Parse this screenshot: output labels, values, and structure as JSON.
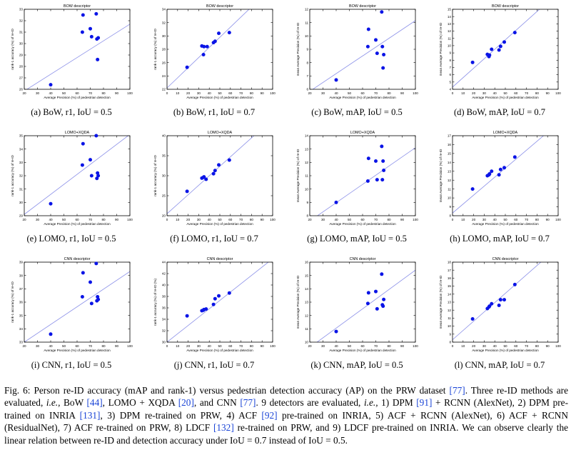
{
  "chart_data": [
    {
      "type": "scatter",
      "id": "a",
      "title": "BOW descriptor",
      "caption": "(a) BoW, r1, IoU = 0.5",
      "xlabel": "Average Precision (%) of pedestrian detection",
      "ylabel": "rank-1 accuracy (%) of re-ID",
      "xlim": [
        20,
        100
      ],
      "ylim": [
        26,
        33
      ],
      "xticks": [
        20,
        30,
        40,
        50,
        60,
        70,
        80,
        90,
        100
      ],
      "yticks": [
        26,
        27,
        28,
        29,
        30,
        31,
        32,
        33
      ],
      "points": [
        {
          "x": 40,
          "y": 26.4
        },
        {
          "x": 64,
          "y": 31
        },
        {
          "x": 64.5,
          "y": 32.5
        },
        {
          "x": 70,
          "y": 31.3
        },
        {
          "x": 71,
          "y": 30.6
        },
        {
          "x": 74.5,
          "y": 32.6
        },
        {
          "x": 75,
          "y": 30.4
        },
        {
          "x": 76,
          "y": 30.5
        },
        {
          "x": 75.5,
          "y": 28.6
        }
      ],
      "fit": [
        {
          "x": 20,
          "y": 25.85
        },
        {
          "x": 100,
          "y": 31.7
        }
      ]
    },
    {
      "type": "scatter",
      "id": "b",
      "title": "BOW descriptor",
      "caption": "(b) BoW, r1, IoU = 0.7",
      "xlabel": "Average Precision (%) of pedestrian detection",
      "ylabel": "rank-1 accuracy (%) of re-ID",
      "xlim": [
        0,
        100
      ],
      "ylim": [
        22,
        34
      ],
      "xticks": [
        0,
        10,
        20,
        30,
        40,
        50,
        60,
        70,
        80,
        90,
        100
      ],
      "yticks": [
        22,
        24,
        26,
        28,
        30,
        32,
        34
      ],
      "points": [
        {
          "x": 19,
          "y": 25.3
        },
        {
          "x": 33,
          "y": 28.5
        },
        {
          "x": 34.5,
          "y": 27.2
        },
        {
          "x": 35,
          "y": 28.4
        },
        {
          "x": 38,
          "y": 28.4
        },
        {
          "x": 44,
          "y": 29
        },
        {
          "x": 45.5,
          "y": 29.2
        },
        {
          "x": 49,
          "y": 30.4
        },
        {
          "x": 59,
          "y": 30.5
        }
      ],
      "fit": [
        {
          "x": 0,
          "y": 22.2
        },
        {
          "x": 100,
          "y": 37.4
        }
      ]
    },
    {
      "type": "scatter",
      "id": "c",
      "title": "BOW descriptor",
      "caption": "(c) BoW, mAP, IoU = 0.5",
      "xlabel": "Average Precision (%) of pedestrian detection",
      "ylabel": "mean Average Precision (%) of re-ID",
      "xlim": [
        20,
        100
      ],
      "ylim": [
        6,
        12
      ],
      "xticks": [
        20,
        30,
        40,
        50,
        60,
        70,
        80,
        90,
        100
      ],
      "yticks": [
        6,
        7,
        8,
        9,
        10,
        11,
        12
      ],
      "points": [
        {
          "x": 40,
          "y": 6.7
        },
        {
          "x": 64,
          "y": 9.2
        },
        {
          "x": 64.5,
          "y": 10.5
        },
        {
          "x": 70,
          "y": 9.7
        },
        {
          "x": 71,
          "y": 8.7
        },
        {
          "x": 74.5,
          "y": 11.8
        },
        {
          "x": 75,
          "y": 9.2
        },
        {
          "x": 76,
          "y": 8.6
        },
        {
          "x": 75.5,
          "y": 7.6
        }
      ],
      "fit": [
        {
          "x": 20,
          "y": 5.85
        },
        {
          "x": 100,
          "y": 11.15
        }
      ]
    },
    {
      "type": "scatter",
      "id": "d",
      "title": "BOW descriptor",
      "caption": "(d) BoW, mAP, IoU = 0.7",
      "xlabel": "Average Precision (%) of pedestrian detection",
      "ylabel": "mean Average Precision (%) of re-ID",
      "xlim": [
        0,
        100
      ],
      "ylim": [
        4,
        15
      ],
      "xticks": [
        0,
        10,
        20,
        30,
        40,
        50,
        60,
        70,
        80,
        90,
        100
      ],
      "yticks": [
        4,
        5,
        6,
        7,
        8,
        9,
        10,
        11,
        12,
        13,
        14,
        15
      ],
      "points": [
        {
          "x": 19,
          "y": 7.7
        },
        {
          "x": 33,
          "y": 8.8
        },
        {
          "x": 34.5,
          "y": 8.5
        },
        {
          "x": 35,
          "y": 8.7
        },
        {
          "x": 37,
          "y": 9.5
        },
        {
          "x": 44,
          "y": 9.4
        },
        {
          "x": 45.5,
          "y": 9.9
        },
        {
          "x": 49,
          "y": 10.5
        },
        {
          "x": 59,
          "y": 11.8
        }
      ],
      "fit": [
        {
          "x": 0,
          "y": 4.3
        },
        {
          "x": 100,
          "y": 17.3
        }
      ]
    },
    {
      "type": "scatter",
      "id": "e",
      "title": "LOMO+XQDA",
      "caption": "(e) LOMO, r1, IoU = 0.5",
      "xlabel": "Average Precision (%) of pedestrian detection",
      "ylabel": "rank-1 accuracy (%) of re-ID",
      "xlim": [
        20,
        100
      ],
      "ylim": [
        29,
        35
      ],
      "xticks": [
        20,
        30,
        40,
        50,
        60,
        70,
        80,
        90,
        100
      ],
      "yticks": [
        29,
        30,
        31,
        32,
        33,
        34,
        35
      ],
      "points": [
        {
          "x": 40,
          "y": 29.9
        },
        {
          "x": 64,
          "y": 32.8
        },
        {
          "x": 64.5,
          "y": 34.4
        },
        {
          "x": 70,
          "y": 33.2
        },
        {
          "x": 71,
          "y": 32
        },
        {
          "x": 74.5,
          "y": 35
        },
        {
          "x": 75,
          "y": 31.8
        },
        {
          "x": 76,
          "y": 32
        },
        {
          "x": 75.5,
          "y": 32.2
        }
      ],
      "fit": [
        {
          "x": 20,
          "y": 29.1
        },
        {
          "x": 100,
          "y": 35.1
        }
      ]
    },
    {
      "type": "scatter",
      "id": "f",
      "title": "LOMO+XQDA",
      "caption": "(f) LOMO, r1, IoU = 0.7",
      "xlabel": "Average Precision (%) of pedestrian detection",
      "ylabel": "rank-1 accuracy (%) of re-ID",
      "xlim": [
        0,
        100
      ],
      "ylim": [
        20,
        40
      ],
      "xticks": [
        0,
        10,
        20,
        30,
        40,
        50,
        60,
        70,
        80,
        90,
        100
      ],
      "yticks": [
        20,
        25,
        30,
        35,
        40
      ],
      "points": [
        {
          "x": 19,
          "y": 26.1
        },
        {
          "x": 33,
          "y": 29.4
        },
        {
          "x": 34.5,
          "y": 29.6
        },
        {
          "x": 35,
          "y": 29.7
        },
        {
          "x": 37,
          "y": 29.1
        },
        {
          "x": 44,
          "y": 30.5
        },
        {
          "x": 45.5,
          "y": 31.3
        },
        {
          "x": 49,
          "y": 32.7
        },
        {
          "x": 59,
          "y": 33.9
        }
      ],
      "fit": [
        {
          "x": 0,
          "y": 20.5
        },
        {
          "x": 100,
          "y": 44.2
        }
      ]
    },
    {
      "type": "scatter",
      "id": "g",
      "title": "LOMO+XQDA",
      "caption": "(g) LOMO, mAP, IoU = 0.5",
      "xlabel": "Average Precision (%) of pedestrian detection",
      "ylabel": "mean Average Precision (%) of re-ID",
      "xlim": [
        20,
        100
      ],
      "ylim": [
        8,
        14
      ],
      "xticks": [
        20,
        30,
        40,
        50,
        60,
        70,
        80,
        90,
        100
      ],
      "yticks": [
        8,
        9,
        10,
        11,
        12,
        13,
        14
      ],
      "points": [
        {
          "x": 40,
          "y": 9
        },
        {
          "x": 64,
          "y": 10.6
        },
        {
          "x": 64.5,
          "y": 12.3
        },
        {
          "x": 70,
          "y": 12.1
        },
        {
          "x": 71,
          "y": 10.7
        },
        {
          "x": 74.5,
          "y": 13.2
        },
        {
          "x": 75,
          "y": 10.7
        },
        {
          "x": 76,
          "y": 11.4
        },
        {
          "x": 75.5,
          "y": 12.1
        }
      ],
      "fit": [
        {
          "x": 20,
          "y": 7.6
        },
        {
          "x": 100,
          "y": 13.1
        }
      ]
    },
    {
      "type": "scatter",
      "id": "h",
      "title": "LOMO+XQDA",
      "caption": "(h) LOMO, mAP, IoU = 0.7",
      "xlabel": "Average Precision (%) of pedestrian detection",
      "ylabel": "mean Average Precision (%) of re-ID",
      "xlim": [
        0,
        100
      ],
      "ylim": [
        8,
        17
      ],
      "xticks": [
        0,
        10,
        20,
        30,
        40,
        50,
        60,
        70,
        80,
        90,
        100
      ],
      "yticks": [
        8,
        9,
        10,
        11,
        12,
        13,
        14,
        15,
        16,
        17
      ],
      "points": [
        {
          "x": 19,
          "y": 11
        },
        {
          "x": 33,
          "y": 12.5
        },
        {
          "x": 34.5,
          "y": 12.6
        },
        {
          "x": 35,
          "y": 12.7
        },
        {
          "x": 37,
          "y": 13
        },
        {
          "x": 44,
          "y": 12.6
        },
        {
          "x": 45.5,
          "y": 13.2
        },
        {
          "x": 49,
          "y": 13.4
        },
        {
          "x": 59,
          "y": 14.6
        }
      ],
      "fit": [
        {
          "x": 0,
          "y": 8.3
        },
        {
          "x": 100,
          "y": 18.4
        }
      ]
    },
    {
      "type": "scatter",
      "id": "i",
      "title": "CNN descriptor",
      "caption": "(i) CNN, r1, IoU = 0.5",
      "xlabel": "Average Precision (%) of pedestrian detection",
      "ylabel": "rank-1 accuracy (%) of re-ID",
      "xlim": [
        20,
        100
      ],
      "ylim": [
        33,
        39
      ],
      "xticks": [
        20,
        30,
        40,
        50,
        60,
        70,
        80,
        90,
        100
      ],
      "yticks": [
        33,
        34,
        35,
        36,
        37,
        38,
        39
      ],
      "points": [
        {
          "x": 40,
          "y": 33.6
        },
        {
          "x": 64,
          "y": 36.4
        },
        {
          "x": 64.5,
          "y": 38.2
        },
        {
          "x": 70,
          "y": 37.5
        },
        {
          "x": 71,
          "y": 35.9
        },
        {
          "x": 74.5,
          "y": 38.9
        },
        {
          "x": 75,
          "y": 36.1
        },
        {
          "x": 76,
          "y": 36.2
        },
        {
          "x": 75.5,
          "y": 36.4
        }
      ],
      "fit": [
        {
          "x": 20,
          "y": 33
        },
        {
          "x": 100,
          "y": 38.3
        }
      ]
    },
    {
      "type": "scatter",
      "id": "j",
      "title": "CNN descriptor",
      "caption": "(j) CNN, r1, IoU = 0.7",
      "xlabel": "Average Precision (%) of pedestrian detection",
      "ylabel": "rank-1 accuracy (%) of re-ID (%)",
      "xlim": [
        0,
        100
      ],
      "ylim": [
        30,
        44
      ],
      "xticks": [
        0,
        10,
        20,
        30,
        40,
        50,
        60,
        70,
        80,
        90,
        100
      ],
      "yticks": [
        30,
        32,
        34,
        36,
        38,
        40,
        42,
        44
      ],
      "points": [
        {
          "x": 19,
          "y": 34.6
        },
        {
          "x": 33,
          "y": 35.5
        },
        {
          "x": 34.5,
          "y": 35.6
        },
        {
          "x": 35,
          "y": 35.7
        },
        {
          "x": 37,
          "y": 35.8
        },
        {
          "x": 44,
          "y": 36.6
        },
        {
          "x": 45.5,
          "y": 37.6
        },
        {
          "x": 49,
          "y": 38.1
        },
        {
          "x": 59,
          "y": 38.6
        }
      ],
      "fit": [
        {
          "x": 0,
          "y": 30
        },
        {
          "x": 100,
          "y": 44.6
        }
      ]
    },
    {
      "type": "scatter",
      "id": "k",
      "title": "CNN descriptor",
      "caption": "(k) CNN, mAP, IoU = 0.5",
      "xlabel": "Average Precision (%) of pedestrian detection",
      "ylabel": "mean Average Precision (%) of re-ID",
      "xlim": [
        20,
        100
      ],
      "ylim": [
        10,
        16
      ],
      "xticks": [
        20,
        30,
        40,
        50,
        60,
        70,
        80,
        90,
        100
      ],
      "yticks": [
        10,
        11,
        12,
        13,
        14,
        15,
        16
      ],
      "points": [
        {
          "x": 40,
          "y": 10.8
        },
        {
          "x": 64,
          "y": 12.9
        },
        {
          "x": 64.5,
          "y": 13.7
        },
        {
          "x": 70,
          "y": 13.8
        },
        {
          "x": 71,
          "y": 12.5
        },
        {
          "x": 74.5,
          "y": 15.1
        },
        {
          "x": 75,
          "y": 12.8
        },
        {
          "x": 76,
          "y": 13.2
        },
        {
          "x": 75.5,
          "y": 12.7
        }
      ],
      "fit": [
        {
          "x": 20,
          "y": 9.6
        },
        {
          "x": 100,
          "y": 15.4
        }
      ]
    },
    {
      "type": "scatter",
      "id": "l",
      "title": "CNN descriptor",
      "caption": "(l) CNN, mAP, IoU = 0.7",
      "xlabel": "Average Precision (%) of pedestrian detection",
      "ylabel": "mean Average Precision (%) of re-ID",
      "xlim": [
        0,
        100
      ],
      "ylim": [
        8,
        18
      ],
      "xticks": [
        0,
        10,
        20,
        30,
        40,
        50,
        60,
        70,
        80,
        90,
        100
      ],
      "yticks": [
        8,
        9,
        10,
        11,
        12,
        13,
        14,
        15,
        16,
        17,
        18
      ],
      "points": [
        {
          "x": 19,
          "y": 10.9
        },
        {
          "x": 33,
          "y": 12.2
        },
        {
          "x": 34.5,
          "y": 12.4
        },
        {
          "x": 35,
          "y": 12.5
        },
        {
          "x": 37,
          "y": 12.8
        },
        {
          "x": 44,
          "y": 12.6
        },
        {
          "x": 45.5,
          "y": 13.3
        },
        {
          "x": 49,
          "y": 13.3
        },
        {
          "x": 59,
          "y": 15.2
        }
      ],
      "fit": [
        {
          "x": 0,
          "y": 8.3
        },
        {
          "x": 100,
          "y": 19.9
        }
      ]
    }
  ],
  "figure_caption": {
    "parts": [
      {
        "t": "Fig. 6: Person re-ID accuracy (mAP and rank-1) versus pedestrian detection accuracy (AP) on the PRW dataset "
      },
      {
        "t": "[77]",
        "ref": true
      },
      {
        "t": ". Three re-ID methods are evaluated, "
      },
      {
        "t": "i.e.,",
        "em": true
      },
      {
        "t": " BoW "
      },
      {
        "t": "[44]",
        "ref": true
      },
      {
        "t": ", LOMO + XQDA "
      },
      {
        "t": "[20]",
        "ref": true
      },
      {
        "t": ", and CNN "
      },
      {
        "t": "[77]",
        "ref": true
      },
      {
        "t": ". 9 detectors are evaluated, "
      },
      {
        "t": "i.e.,",
        "em": true
      },
      {
        "t": " 1) DPM "
      },
      {
        "t": "[91]",
        "ref": true
      },
      {
        "t": " + RCNN (AlexNet), 2) DPM pre-trained on INRIA "
      },
      {
        "t": "[131]",
        "ref": true
      },
      {
        "t": ", 3) DPM re-trained on PRW, 4) ACF "
      },
      {
        "t": "[92]",
        "ref": true
      },
      {
        "t": " pre-trained on INRIA, 5) ACF + RCNN (AlexNet), 6) ACF + RCNN (ResidualNet), 7) ACF re-trained on PRW, 8) LDCF "
      },
      {
        "t": "[132]",
        "ref": true
      },
      {
        "t": " re-trained on PRW, and 9) LDCF pre-trained on INRIA. We can observe clearly the linear relation between re-ID and detection accuracy under IoU = 0.7 instead of IoU = 0.5."
      }
    ]
  },
  "colors": {
    "point": "#0a14e6",
    "fit_line": "#8a8fe8",
    "axis": "#000000",
    "text": "#000000",
    "ref_link": "#1a44d6"
  }
}
